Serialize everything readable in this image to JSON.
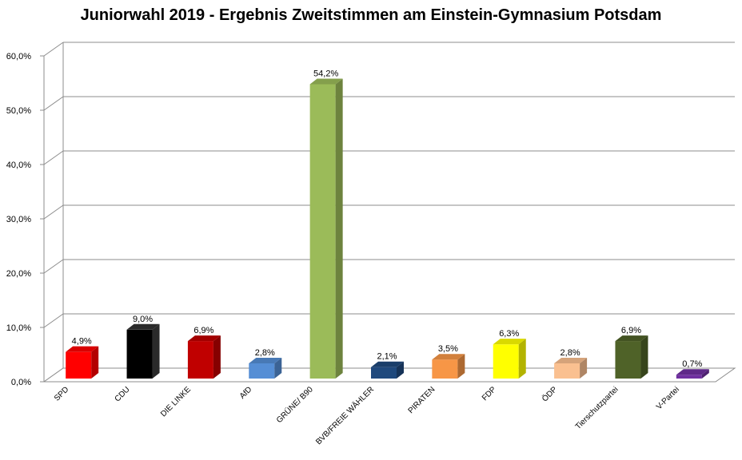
{
  "chart_data": {
    "type": "bar",
    "title": "Juniorwahl 2019 - Ergebnis Zweitstimmen am Einstein-Gymnasium Potsdam",
    "xlabel": "",
    "ylabel": "",
    "ylim": [
      0,
      60
    ],
    "yticks": [
      "0,0%",
      "10,0%",
      "20,0%",
      "30,0%",
      "40,0%",
      "50,0%",
      "60,0%"
    ],
    "grid": true,
    "categories": [
      "SPD",
      "CDU",
      "DIE LINKE",
      "AfD",
      "GRÜNE/ B90",
      "BVB/FREIE WÄHLER",
      "PIRATEN",
      "FDP",
      "ÖDP",
      "Tierschutzpartei",
      "V-Partei"
    ],
    "values": [
      4.9,
      9.0,
      6.9,
      2.8,
      54.2,
      2.1,
      3.5,
      6.3,
      2.8,
      6.9,
      0.7
    ],
    "labels": [
      "4,9%",
      "9,0%",
      "6,9%",
      "2,8%",
      "54,2%",
      "2,1%",
      "3,5%",
      "6,3%",
      "2,8%",
      "6,9%",
      "0,7%"
    ],
    "colors": [
      "#ff0000",
      "#000000",
      "#c00000",
      "#558ed5",
      "#9bbb59",
      "#1f497d",
      "#f79646",
      "#ffff00",
      "#fac090",
      "#4f6228",
      "#7030a0"
    ]
  }
}
